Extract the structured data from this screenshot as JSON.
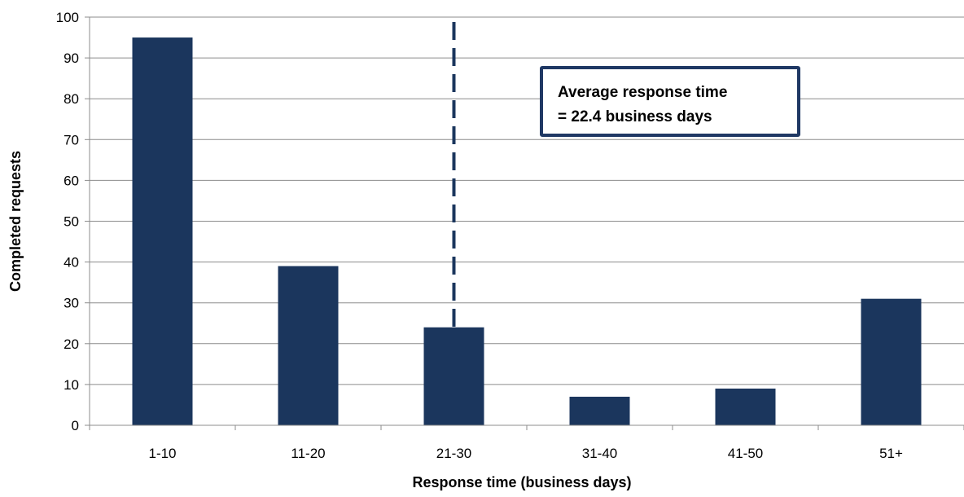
{
  "chart_data": {
    "type": "bar",
    "categories": [
      "1-10",
      "11-20",
      "21-30",
      "31-40",
      "41-50",
      "51+"
    ],
    "values": [
      95,
      39,
      24,
      7,
      9,
      31
    ],
    "xlabel": "Response time (business days)",
    "ylabel": "Completed requests",
    "ylim": [
      0,
      100
    ],
    "yticks": [
      0,
      10,
      20,
      30,
      40,
      50,
      60,
      70,
      80,
      90,
      100
    ],
    "grid": true,
    "colors": {
      "bar": "#1b365d",
      "reference_line": "#1b365d",
      "grid": "#8c8c8c"
    },
    "reference_line": {
      "x": 22.4,
      "style": "dashed"
    },
    "annotation": {
      "line1": "Average response time",
      "line2": "= 22.4 business days"
    }
  }
}
